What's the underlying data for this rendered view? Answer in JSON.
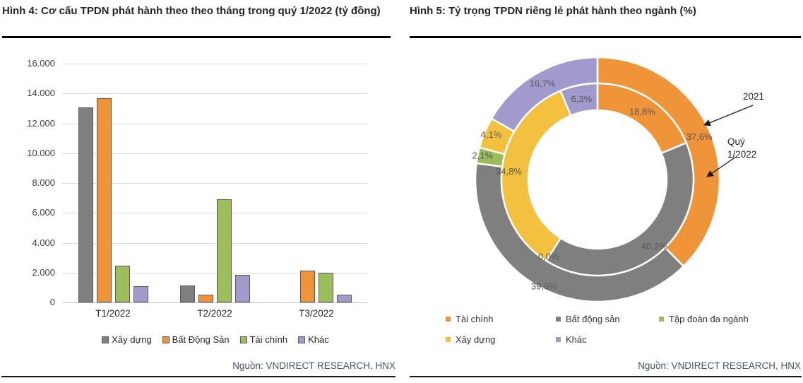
{
  "chart_data": [
    {
      "type": "bar",
      "title": "Hình 4: Cơ cấu TPDN phát hành theo theo tháng trong quý 1/2022 (tỷ đồng)",
      "source": "Nguồn: VNDIRECT RESEARCH, HNX",
      "categories": [
        "T1/2022",
        "T2/2022",
        "T3/2022"
      ],
      "series": [
        {
          "name": "Xây dựng",
          "color": "#7F7F7F",
          "values": [
            13050,
            1150,
            0
          ]
        },
        {
          "name": "Bất Động Sản",
          "color": "#F0943A",
          "values": [
            13700,
            500,
            2150
          ]
        },
        {
          "name": "Tài chính",
          "color": "#9BBE5B",
          "values": [
            2450,
            6900,
            2000
          ]
        },
        {
          "name": "Khác",
          "color": "#A09ACD",
          "values": [
            1080,
            1870,
            500
          ]
        }
      ],
      "ylim": [
        0,
        16000
      ],
      "ytick_step": 2000,
      "ytick_labels": [
        "0",
        "2.000",
        "4.000",
        "6.000",
        "8.000",
        "10.000",
        "12.000",
        "14.000",
        "16.000"
      ],
      "grid": true,
      "legend_position": "bottom"
    },
    {
      "type": "pie",
      "subtype": "double-donut",
      "title": "Hình 5: Tỷ trọng TPDN riêng lẻ phát hành theo ngành (%)",
      "source": "Nguồn: VNDIRECT RESEARCH, HNX",
      "categories": [
        "Tài chính",
        "Bất động sản",
        "Tập đoàn đa ngành",
        "Xây dựng",
        "Khác"
      ],
      "colors": [
        "#F0943A",
        "#7F7F7F",
        "#9BBE5B",
        "#F3C13F",
        "#A09ACD"
      ],
      "rings": [
        {
          "name": "2021",
          "position": "outer",
          "values": [
            37.6,
            39.6,
            2.1,
            4.1,
            16.7
          ],
          "labels": [
            "37,6%",
            "39,6%",
            "2,1%",
            "4,1%",
            "16,7%"
          ],
          "label_radius": [
            156,
            170,
            166,
            163,
            156
          ]
        },
        {
          "name": "Quý 1/2022",
          "position": "inner",
          "values": [
            18.8,
            40.2,
            0.0,
            34.8,
            6.3
          ],
          "labels": [
            "18,8%",
            "40,2%",
            "0,0%",
            "34,8%",
            "6,3%"
          ],
          "label_radius": [
            114,
            125,
            130,
            126,
            115
          ]
        }
      ],
      "annotations": [
        {
          "text": "2021"
        },
        {
          "text_line1": "Quý",
          "text_line2": "1/2022"
        }
      ],
      "label_color": "#595959",
      "legend_position": "bottom"
    }
  ]
}
